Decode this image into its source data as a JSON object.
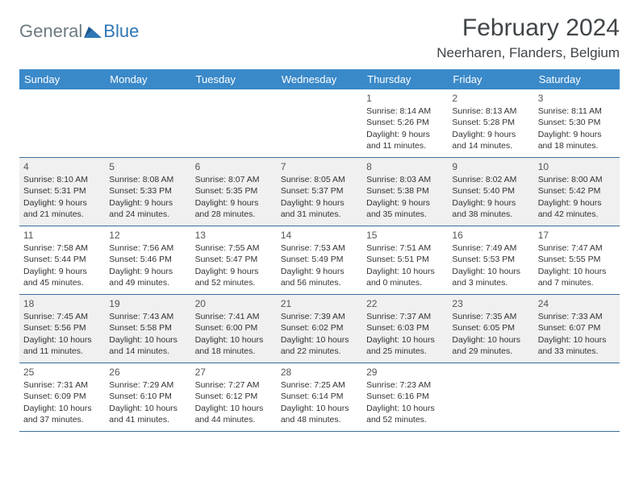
{
  "logo": {
    "text1": "General",
    "text2": "Blue"
  },
  "title": "February 2024",
  "location": "Neerharen, Flanders, Belgium",
  "weekdays": [
    "Sunday",
    "Monday",
    "Tuesday",
    "Wednesday",
    "Thursday",
    "Friday",
    "Saturday"
  ],
  "header_bg": "#3a89c9",
  "shaded_bg": "#f0f0f0",
  "border_color": "#3a6d9a",
  "weeks": [
    [
      {
        "day": "",
        "shaded": false,
        "lines": []
      },
      {
        "day": "",
        "shaded": false,
        "lines": []
      },
      {
        "day": "",
        "shaded": false,
        "lines": []
      },
      {
        "day": "",
        "shaded": false,
        "lines": []
      },
      {
        "day": "1",
        "shaded": false,
        "lines": [
          "Sunrise: 8:14 AM",
          "Sunset: 5:26 PM",
          "Daylight: 9 hours",
          "and 11 minutes."
        ]
      },
      {
        "day": "2",
        "shaded": false,
        "lines": [
          "Sunrise: 8:13 AM",
          "Sunset: 5:28 PM",
          "Daylight: 9 hours",
          "and 14 minutes."
        ]
      },
      {
        "day": "3",
        "shaded": false,
        "lines": [
          "Sunrise: 8:11 AM",
          "Sunset: 5:30 PM",
          "Daylight: 9 hours",
          "and 18 minutes."
        ]
      }
    ],
    [
      {
        "day": "4",
        "shaded": true,
        "lines": [
          "Sunrise: 8:10 AM",
          "Sunset: 5:31 PM",
          "Daylight: 9 hours",
          "and 21 minutes."
        ]
      },
      {
        "day": "5",
        "shaded": true,
        "lines": [
          "Sunrise: 8:08 AM",
          "Sunset: 5:33 PM",
          "Daylight: 9 hours",
          "and 24 minutes."
        ]
      },
      {
        "day": "6",
        "shaded": true,
        "lines": [
          "Sunrise: 8:07 AM",
          "Sunset: 5:35 PM",
          "Daylight: 9 hours",
          "and 28 minutes."
        ]
      },
      {
        "day": "7",
        "shaded": true,
        "lines": [
          "Sunrise: 8:05 AM",
          "Sunset: 5:37 PM",
          "Daylight: 9 hours",
          "and 31 minutes."
        ]
      },
      {
        "day": "8",
        "shaded": true,
        "lines": [
          "Sunrise: 8:03 AM",
          "Sunset: 5:38 PM",
          "Daylight: 9 hours",
          "and 35 minutes."
        ]
      },
      {
        "day": "9",
        "shaded": true,
        "lines": [
          "Sunrise: 8:02 AM",
          "Sunset: 5:40 PM",
          "Daylight: 9 hours",
          "and 38 minutes."
        ]
      },
      {
        "day": "10",
        "shaded": true,
        "lines": [
          "Sunrise: 8:00 AM",
          "Sunset: 5:42 PM",
          "Daylight: 9 hours",
          "and 42 minutes."
        ]
      }
    ],
    [
      {
        "day": "11",
        "shaded": false,
        "lines": [
          "Sunrise: 7:58 AM",
          "Sunset: 5:44 PM",
          "Daylight: 9 hours",
          "and 45 minutes."
        ]
      },
      {
        "day": "12",
        "shaded": false,
        "lines": [
          "Sunrise: 7:56 AM",
          "Sunset: 5:46 PM",
          "Daylight: 9 hours",
          "and 49 minutes."
        ]
      },
      {
        "day": "13",
        "shaded": false,
        "lines": [
          "Sunrise: 7:55 AM",
          "Sunset: 5:47 PM",
          "Daylight: 9 hours",
          "and 52 minutes."
        ]
      },
      {
        "day": "14",
        "shaded": false,
        "lines": [
          "Sunrise: 7:53 AM",
          "Sunset: 5:49 PM",
          "Daylight: 9 hours",
          "and 56 minutes."
        ]
      },
      {
        "day": "15",
        "shaded": false,
        "lines": [
          "Sunrise: 7:51 AM",
          "Sunset: 5:51 PM",
          "Daylight: 10 hours",
          "and 0 minutes."
        ]
      },
      {
        "day": "16",
        "shaded": false,
        "lines": [
          "Sunrise: 7:49 AM",
          "Sunset: 5:53 PM",
          "Daylight: 10 hours",
          "and 3 minutes."
        ]
      },
      {
        "day": "17",
        "shaded": false,
        "lines": [
          "Sunrise: 7:47 AM",
          "Sunset: 5:55 PM",
          "Daylight: 10 hours",
          "and 7 minutes."
        ]
      }
    ],
    [
      {
        "day": "18",
        "shaded": true,
        "lines": [
          "Sunrise: 7:45 AM",
          "Sunset: 5:56 PM",
          "Daylight: 10 hours",
          "and 11 minutes."
        ]
      },
      {
        "day": "19",
        "shaded": true,
        "lines": [
          "Sunrise: 7:43 AM",
          "Sunset: 5:58 PM",
          "Daylight: 10 hours",
          "and 14 minutes."
        ]
      },
      {
        "day": "20",
        "shaded": true,
        "lines": [
          "Sunrise: 7:41 AM",
          "Sunset: 6:00 PM",
          "Daylight: 10 hours",
          "and 18 minutes."
        ]
      },
      {
        "day": "21",
        "shaded": true,
        "lines": [
          "Sunrise: 7:39 AM",
          "Sunset: 6:02 PM",
          "Daylight: 10 hours",
          "and 22 minutes."
        ]
      },
      {
        "day": "22",
        "shaded": true,
        "lines": [
          "Sunrise: 7:37 AM",
          "Sunset: 6:03 PM",
          "Daylight: 10 hours",
          "and 25 minutes."
        ]
      },
      {
        "day": "23",
        "shaded": true,
        "lines": [
          "Sunrise: 7:35 AM",
          "Sunset: 6:05 PM",
          "Daylight: 10 hours",
          "and 29 minutes."
        ]
      },
      {
        "day": "24",
        "shaded": true,
        "lines": [
          "Sunrise: 7:33 AM",
          "Sunset: 6:07 PM",
          "Daylight: 10 hours",
          "and 33 minutes."
        ]
      }
    ],
    [
      {
        "day": "25",
        "shaded": false,
        "lines": [
          "Sunrise: 7:31 AM",
          "Sunset: 6:09 PM",
          "Daylight: 10 hours",
          "and 37 minutes."
        ]
      },
      {
        "day": "26",
        "shaded": false,
        "lines": [
          "Sunrise: 7:29 AM",
          "Sunset: 6:10 PM",
          "Daylight: 10 hours",
          "and 41 minutes."
        ]
      },
      {
        "day": "27",
        "shaded": false,
        "lines": [
          "Sunrise: 7:27 AM",
          "Sunset: 6:12 PM",
          "Daylight: 10 hours",
          "and 44 minutes."
        ]
      },
      {
        "day": "28",
        "shaded": false,
        "lines": [
          "Sunrise: 7:25 AM",
          "Sunset: 6:14 PM",
          "Daylight: 10 hours",
          "and 48 minutes."
        ]
      },
      {
        "day": "29",
        "shaded": false,
        "lines": [
          "Sunrise: 7:23 AM",
          "Sunset: 6:16 PM",
          "Daylight: 10 hours",
          "and 52 minutes."
        ]
      },
      {
        "day": "",
        "shaded": false,
        "lines": []
      },
      {
        "day": "",
        "shaded": false,
        "lines": []
      }
    ]
  ]
}
